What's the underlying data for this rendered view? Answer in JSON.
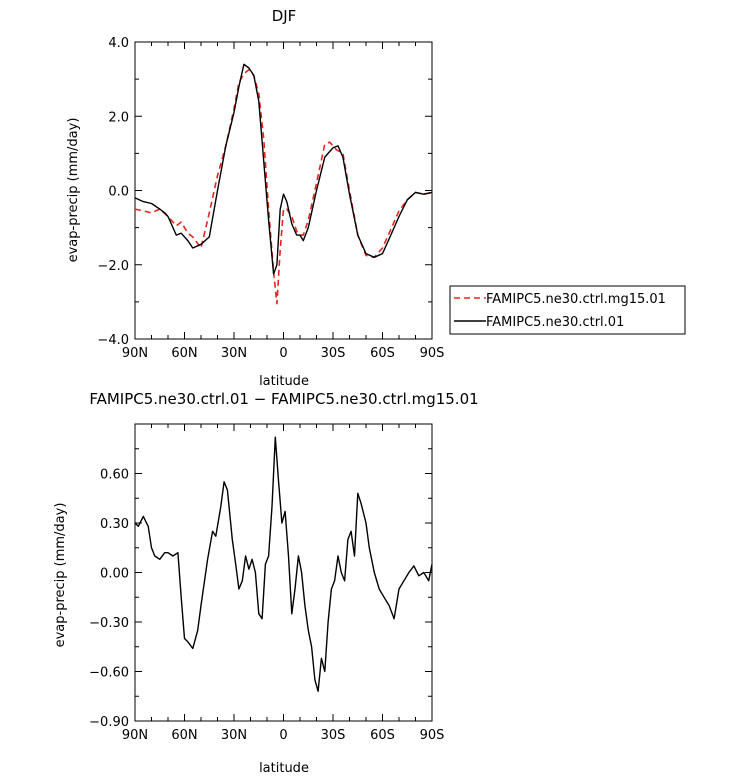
{
  "chart_data": [
    {
      "type": "line",
      "title": "DJF",
      "xlabel": "latitude",
      "ylabel": "evap-precip (mm/day)",
      "xlim": [
        90,
        -90
      ],
      "ylim": [
        -4,
        4
      ],
      "x_ticks": [
        90,
        60,
        30,
        0,
        -30,
        -60,
        -90
      ],
      "x_tick_labels": [
        "90N",
        "60N",
        "30N",
        "0",
        "30S",
        "60S",
        "90S"
      ],
      "y_ticks": [
        4,
        2,
        0,
        -2,
        -4
      ],
      "y_tick_labels": [
        "4.0",
        "2.0",
        "0.0",
        "−2.0",
        "−4.0"
      ],
      "legend": "right, outside plot",
      "series": [
        {
          "name": "FAMIPC5.ne30.ctrl.mg15.01",
          "color": "#e8231f",
          "dash": "dashed",
          "x": [
            90,
            85,
            80,
            75,
            70,
            65,
            62,
            58,
            55,
            50,
            45,
            40,
            35,
            30,
            27,
            24,
            21,
            18,
            15,
            12,
            9,
            6,
            4,
            2,
            0,
            -2,
            -5,
            -8,
            -10,
            -12,
            -15,
            -20,
            -25,
            -28,
            -32,
            -36,
            -40,
            -45,
            -50,
            -55,
            -60,
            -65,
            -70,
            -75,
            -80,
            -85,
            -90
          ],
          "y": [
            -0.5,
            -0.55,
            -0.6,
            -0.5,
            -0.7,
            -0.95,
            -0.85,
            -1.15,
            -1.25,
            -1.55,
            -0.6,
            0.4,
            1.2,
            2.2,
            2.9,
            3.15,
            3.25,
            3.1,
            2.6,
            1.4,
            -0.5,
            -2.2,
            -3.05,
            -1.6,
            -0.5,
            -0.5,
            -0.7,
            -1.1,
            -1.2,
            -1.2,
            -0.8,
            0.2,
            1.25,
            1.3,
            1.1,
            1.0,
            0.0,
            -1.2,
            -1.75,
            -1.8,
            -1.55,
            -1.05,
            -0.55,
            -0.25,
            -0.05,
            -0.1,
            -0.05
          ]
        },
        {
          "name": "FAMIPC5.ne30.ctrl.01",
          "color": "#000000",
          "dash": "solid",
          "x": [
            90,
            85,
            80,
            75,
            72,
            70,
            65,
            62,
            58,
            55,
            50,
            45,
            40,
            35,
            30,
            27,
            24,
            21,
            18,
            15,
            12,
            9,
            6,
            4,
            2,
            0,
            -2,
            -5,
            -8,
            -10,
            -12,
            -15,
            -20,
            -25,
            -30,
            -33,
            -36,
            -40,
            -45,
            -50,
            -55,
            -60,
            -65,
            -70,
            -75,
            -80,
            -85,
            -90
          ],
          "y": [
            -0.2,
            -0.3,
            -0.35,
            -0.5,
            -0.6,
            -0.7,
            -1.2,
            -1.15,
            -1.35,
            -1.55,
            -1.45,
            -1.25,
            0.0,
            1.2,
            2.1,
            2.8,
            3.4,
            3.3,
            3.1,
            2.4,
            0.8,
            -0.8,
            -2.25,
            -2.0,
            -0.5,
            -0.1,
            -0.3,
            -0.9,
            -1.2,
            -1.2,
            -1.35,
            -1.0,
            0.0,
            0.9,
            1.15,
            1.2,
            0.9,
            -0.1,
            -1.2,
            -1.7,
            -1.8,
            -1.7,
            -1.2,
            -0.7,
            -0.25,
            -0.05,
            -0.1,
            -0.05
          ]
        }
      ]
    },
    {
      "type": "line",
      "title": "FAMIPC5.ne30.ctrl.01 − FAMIPC5.ne30.ctrl.mg15.01",
      "xlabel": "latitude",
      "ylabel": "evap-precip (mm/day)",
      "xlim": [
        90,
        -90
      ],
      "ylim": [
        -0.9,
        0.9
      ],
      "x_ticks": [
        90,
        60,
        30,
        0,
        -30,
        -60,
        -90
      ],
      "x_tick_labels": [
        "90N",
        "60N",
        "30N",
        "0",
        "30S",
        "60S",
        "90S"
      ],
      "y_ticks": [
        0.6,
        0.3,
        0,
        -0.3,
        -0.6,
        -0.9
      ],
      "y_tick_labels": [
        "0.60",
        "0.30",
        "0.00",
        "−0.30",
        "−0.60",
        "−0.90"
      ],
      "series": [
        {
          "color": "#000000",
          "dash": "solid",
          "x": [
            90,
            88,
            85,
            82,
            80,
            78,
            75,
            72,
            70,
            67,
            64,
            62,
            60,
            58,
            55,
            52,
            50,
            46,
            43,
            41,
            38,
            36,
            34,
            31,
            29,
            27,
            25,
            23,
            21,
            19,
            17,
            15,
            13,
            11,
            9,
            7,
            5,
            3,
            1,
            -1,
            -3,
            -5,
            -7,
            -9,
            -11,
            -13,
            -15,
            -17,
            -19,
            -21,
            -23,
            -25,
            -27,
            -29,
            -31,
            -33,
            -35,
            -37,
            -39,
            -41,
            -43,
            -45,
            -47,
            -50,
            -52,
            -55,
            -58,
            -61,
            -64,
            -67,
            -70,
            -73,
            -76,
            -79,
            -82,
            -85,
            -88,
            -90
          ],
          "y": [
            0.3,
            0.28,
            0.34,
            0.28,
            0.15,
            0.1,
            0.08,
            0.12,
            0.12,
            0.1,
            0.12,
            -0.15,
            -0.4,
            -0.42,
            -0.46,
            -0.35,
            -0.2,
            0.08,
            0.25,
            0.22,
            0.4,
            0.55,
            0.5,
            0.2,
            0.05,
            -0.1,
            -0.05,
            0.1,
            0.02,
            0.08,
            0.0,
            -0.25,
            -0.28,
            0.05,
            0.1,
            0.4,
            0.82,
            0.55,
            0.3,
            0.37,
            0.1,
            -0.25,
            -0.1,
            0.1,
            0.0,
            -0.2,
            -0.35,
            -0.45,
            -0.65,
            -0.72,
            -0.52,
            -0.6,
            -0.3,
            -0.1,
            -0.05,
            0.1,
            0.0,
            -0.05,
            0.2,
            0.25,
            0.1,
            0.48,
            0.42,
            0.3,
            0.15,
            0.0,
            -0.1,
            -0.15,
            -0.2,
            -0.28,
            -0.1,
            -0.05,
            0.0,
            0.04,
            -0.02,
            0.0,
            -0.05,
            0.05
          ]
        }
      ]
    }
  ]
}
